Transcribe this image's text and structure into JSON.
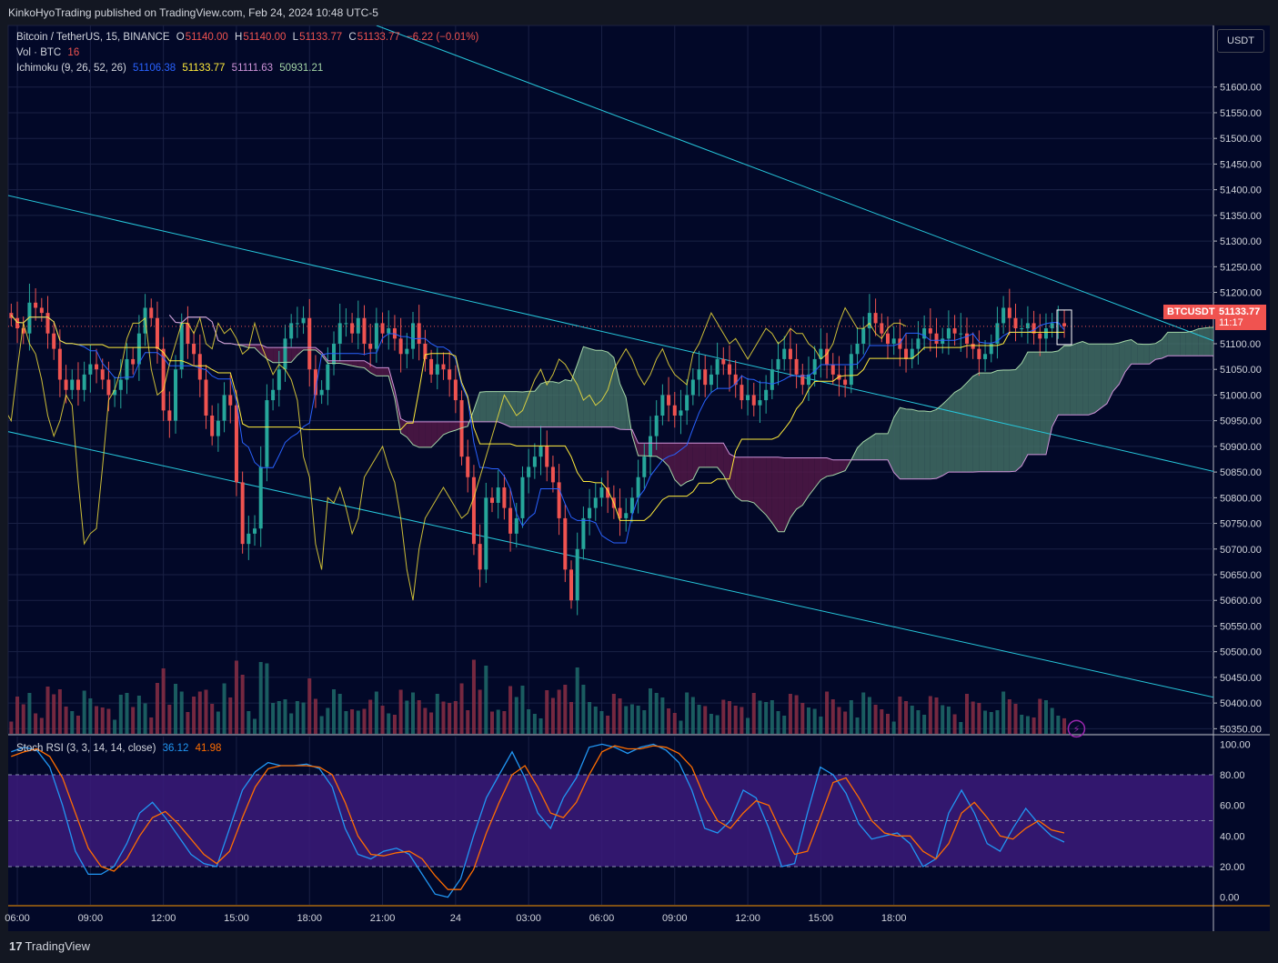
{
  "header": {
    "publish_line": "KinkoHyoTrading published on TradingView.com, Feb 24, 2024 10:48 UTC-5"
  },
  "legend": {
    "symbol": "Bitcoin / TetherUS, 15, BINANCE",
    "o_label": "O",
    "o_value": "51140.00",
    "h_label": "H",
    "h_value": "51140.00",
    "l_label": "L",
    "l_value": "51133.77",
    "c_label": "C",
    "c_value": "51133.77",
    "change": "−6.22 (−0.01%)",
    "vol_label": "Vol · BTC",
    "vol_value": "16",
    "ichimoku_label": "Ichimoku (9, 26, 52, 26)",
    "ichimoku_values": [
      "51106.38",
      "51133.77",
      "51111.63",
      "50931.21"
    ],
    "stoch_label": "Stoch RSI (3, 3, 14, 14, close)",
    "stoch_k": "36.12",
    "stoch_d": "41.98"
  },
  "price_axis": {
    "currency": "USDT"
  },
  "symbol_tag": {
    "name": "BTCUSDT",
    "price": "51133.77",
    "countdown": "11:17"
  },
  "footer": {
    "brand": "TradingView"
  },
  "colors": {
    "up": "#26a69a",
    "down": "#ef5350",
    "tenkan": "#2962ff",
    "kijun": "#ffeb3b",
    "span_a": "#a5d6a7",
    "span_b": "#ce93d8",
    "bull_cloud": "#4a7a6b",
    "bear_cloud": "#5b1a4a",
    "stoch_k": "#2196f3",
    "stoch_d": "#ff6d00",
    "channel": "#26c6da",
    "rsi_band": "#3b1a7a"
  },
  "chart_data": [
    {
      "type": "candlestick",
      "title": "Bitcoin / TetherUS, 15, BINANCE",
      "ylim": [
        50340,
        51720
      ],
      "y_ticks": [
        51600,
        51550,
        51500,
        51450,
        51400,
        51350,
        51300,
        51250,
        51200,
        51150,
        51100,
        51050,
        51000,
        50950,
        50900,
        50850,
        50800,
        50750,
        50700,
        50650,
        50600,
        50550,
        50500,
        50450,
        50400,
        50350
      ],
      "x_tick_labels": [
        "06:00",
        "09:00",
        "12:00",
        "15:00",
        "18:00",
        "21:00",
        "24",
        "03:00",
        "06:00",
        "09:00",
        "12:00",
        "15:00",
        "18:00"
      ],
      "bars_total": 198,
      "last_price": 51133.77,
      "candles_close": [
        51150,
        51130,
        51120,
        51180,
        51170,
        51160,
        51120,
        51090,
        51030,
        51010,
        51030,
        51010,
        51040,
        51060,
        51050,
        51030,
        51000,
        51010,
        51030,
        51070,
        51060,
        51120,
        51170,
        51150,
        51090,
        50970,
        50950,
        51050,
        51140,
        51100,
        51080,
        51030,
        50960,
        50920,
        50950,
        51000,
        50980,
        50830,
        50710,
        50730,
        50740,
        50860,
        50990,
        51010,
        51050,
        51110,
        51140,
        51140,
        51150,
        51050,
        51000,
        51010,
        51060,
        51100,
        51140,
        51140,
        51120,
        51150,
        51100,
        51090,
        51140,
        51120,
        51130,
        51110,
        51080,
        51090,
        51140,
        51100,
        51070,
        51040,
        51060,
        51050,
        51030,
        50990,
        50880,
        50840,
        50710,
        50660,
        50800,
        50790,
        50820,
        50780,
        50730,
        50760,
        50840,
        50860,
        50880,
        50900,
        50860,
        50830,
        50760,
        50660,
        50600,
        50700,
        50760,
        50780,
        50800,
        50820,
        50800,
        50780,
        50760,
        50770,
        50800,
        50840,
        50880,
        50920,
        50960,
        51000,
        50980,
        50960,
        50970,
        51000,
        51030,
        51050,
        51020,
        51040,
        51070,
        51060,
        51040,
        51020,
        50990,
        51000,
        50980,
        50990,
        51010,
        51050,
        51070,
        51090,
        51070,
        51040,
        51020,
        51040,
        51070,
        51090,
        51060,
        51040,
        51030,
        51020,
        51080,
        51100,
        51130,
        51160,
        51140,
        51120,
        51100,
        51110,
        51090,
        51070,
        51090,
        51110,
        51130,
        51120,
        51100,
        51110,
        51130,
        51120,
        51120,
        51100,
        51090,
        51070,
        51080,
        51100,
        51140,
        51170,
        51150,
        51130,
        51130,
        51140,
        51120,
        51110,
        51130,
        51140,
        51140,
        51134
      ],
      "kijun_label": "51133.77",
      "tenkan_label": "51106.38",
      "span_a_label": "51111.63",
      "span_b_label": "50931.21"
    },
    {
      "type": "line",
      "title": "Stoch RSI (3, 3, 14, 14, close)",
      "ylim": [
        -5,
        105
      ],
      "y_ticks": [
        100,
        80,
        60,
        40,
        20,
        0
      ],
      "band": [
        20,
        80
      ],
      "series": [
        {
          "name": "K",
          "values": [
            95,
            98,
            96,
            85,
            60,
            30,
            15,
            15,
            20,
            35,
            55,
            62,
            52,
            40,
            28,
            22,
            20,
            45,
            70,
            82,
            88,
            86,
            86,
            87,
            84,
            72,
            45,
            28,
            25,
            30,
            32,
            28,
            15,
            2,
            0,
            12,
            40,
            65,
            80,
            95,
            78,
            55,
            45,
            65,
            78,
            98,
            100,
            98,
            94,
            98,
            100,
            96,
            88,
            70,
            45,
            42,
            50,
            70,
            65,
            45,
            20,
            22,
            55,
            85,
            80,
            68,
            48,
            38,
            40,
            42,
            35,
            20,
            25,
            55,
            70,
            55,
            35,
            30,
            45,
            58,
            48,
            40,
            36
          ]
        },
        {
          "name": "D",
          "values": [
            92,
            95,
            97,
            92,
            78,
            55,
            32,
            20,
            17,
            25,
            40,
            52,
            56,
            48,
            38,
            28,
            22,
            30,
            52,
            72,
            84,
            86,
            86,
            86,
            85,
            80,
            62,
            40,
            28,
            27,
            29,
            30,
            25,
            14,
            5,
            5,
            18,
            42,
            62,
            80,
            86,
            72,
            55,
            52,
            62,
            80,
            95,
            99,
            97,
            97,
            99,
            98,
            94,
            85,
            65,
            50,
            45,
            55,
            63,
            60,
            42,
            28,
            30,
            52,
            75,
            78,
            65,
            50,
            42,
            40,
            40,
            30,
            25,
            35,
            55,
            62,
            52,
            40,
            38,
            45,
            50,
            44,
            42
          ]
        }
      ]
    }
  ]
}
